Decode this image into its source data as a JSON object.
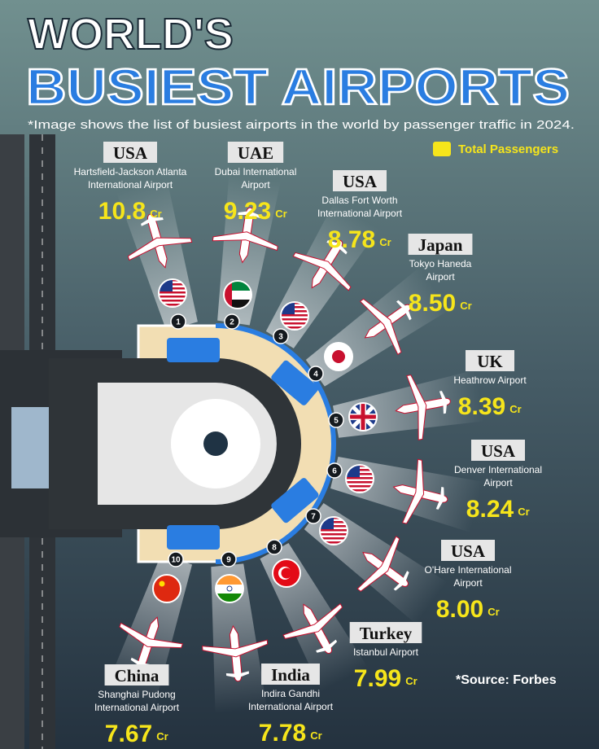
{
  "header": {
    "title_line1": "WORLD'S",
    "title_line2": "BUSIEST AIRPORTS",
    "subtitle": "*Image shows the list of busiest airports in the world by passenger traffic in 2024."
  },
  "legend": "Total Passengers",
  "airports": [
    {
      "rank": "1",
      "country": "USA",
      "airport": [
        "Hartsfield-Jackson Atlanta",
        "International Airport"
      ],
      "value": "10.8",
      "unit": "Cr"
    },
    {
      "rank": "2",
      "country": "UAE",
      "airport": [
        "Dubai International",
        "Airport"
      ],
      "value": "9.23",
      "unit": "Cr"
    },
    {
      "rank": "3",
      "country": "USA",
      "airport": [
        "Dallas Fort Worth",
        "International Airport"
      ],
      "value": "8.78",
      "unit": "Cr"
    },
    {
      "rank": "4",
      "country": "Japan",
      "airport": [
        "Tokyo Haneda",
        "Airport"
      ],
      "value": "8.50",
      "unit": "Cr"
    },
    {
      "rank": "5",
      "country": "UK",
      "airport": [
        "Heathrow Airport"
      ],
      "value": "8.39",
      "unit": "Cr"
    },
    {
      "rank": "6",
      "country": "USA",
      "airport": [
        "Denver International",
        "Airport"
      ],
      "value": "8.24",
      "unit": "Cr"
    },
    {
      "rank": "7",
      "country": "USA",
      "airport": [
        "O'Hare International",
        "Airport"
      ],
      "value": "8.00",
      "unit": "Cr"
    },
    {
      "rank": "8",
      "country": "Turkey",
      "airport": [
        "Istanbul Airport"
      ],
      "value": "7.99",
      "unit": "Cr"
    },
    {
      "rank": "9",
      "country": "India",
      "airport": [
        "Indira Gandhi",
        "International Airport"
      ],
      "value": "7.78",
      "unit": "Cr"
    },
    {
      "rank": "10",
      "country": "China",
      "airport": [
        "Shanghai Pudong",
        "International Airport"
      ],
      "value": "7.67",
      "unit": "Cr"
    }
  ],
  "source": "*Source: Forbes"
}
